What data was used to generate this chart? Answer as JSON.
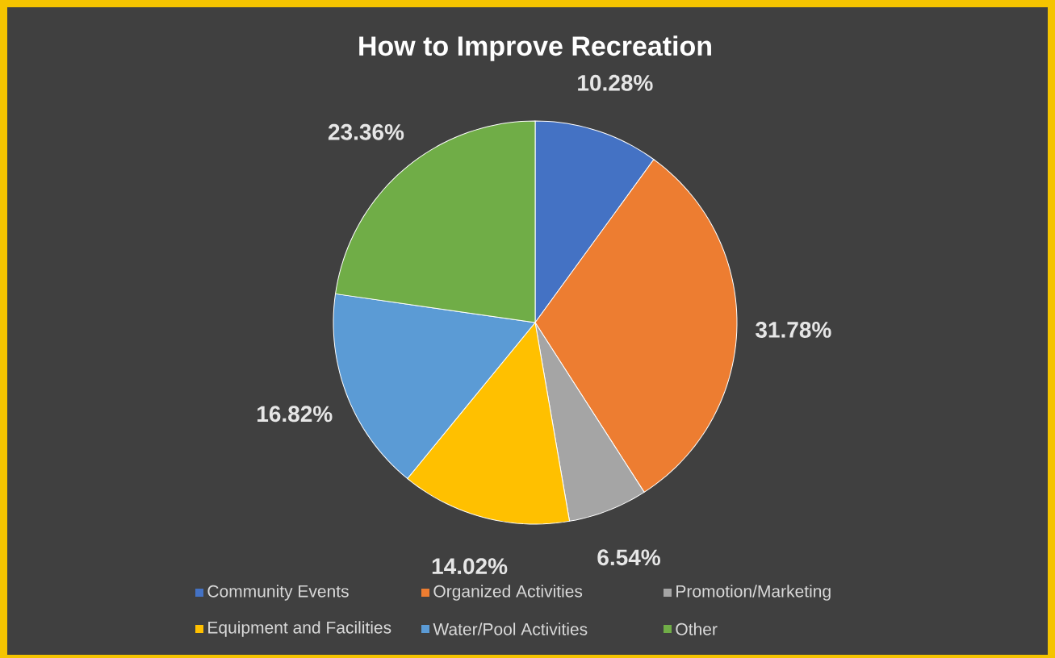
{
  "chart_data": {
    "type": "pie",
    "title": "How to Improve Recreation",
    "categories": [
      "Community Events",
      "Organized Activities",
      "Promotion/Marketing",
      "Equipment and Facilities",
      "Water/Pool Activities",
      "Other"
    ],
    "values": [
      10.28,
      31.78,
      6.54,
      14.02,
      16.82,
      23.36
    ],
    "value_labels": [
      "10.28%",
      "31.78%",
      "6.54%",
      "14.02%",
      "16.82%",
      "23.36%"
    ],
    "colors": [
      "#4472c4",
      "#ed7d31",
      "#a5a5a5",
      "#ffc000",
      "#5b9bd5",
      "#70ad47"
    ],
    "legend": "bottom"
  }
}
